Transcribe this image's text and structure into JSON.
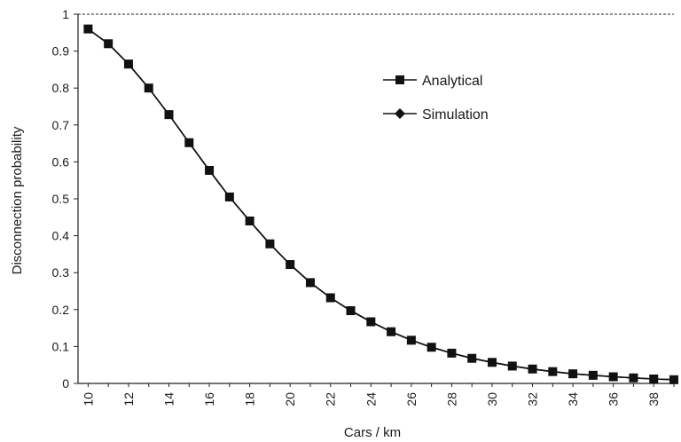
{
  "chart_data": {
    "type": "line",
    "xlabel": "Cars / km",
    "ylabel": "Disconnection probability",
    "xlim": [
      10,
      39
    ],
    "ylim": [
      0,
      1
    ],
    "x_ticks": [
      "10",
      "12",
      "14",
      "16",
      "18",
      "20",
      "22",
      "24",
      "26",
      "28",
      "30",
      "32",
      "34",
      "36",
      "38"
    ],
    "y_ticks": [
      "0",
      "0.1",
      "0.2",
      "0.3",
      "0.4",
      "0.5",
      "0.6",
      "0.7",
      "0.8",
      "0.9",
      "1"
    ],
    "x": [
      10,
      11,
      12,
      13,
      14,
      15,
      16,
      17,
      18,
      19,
      20,
      21,
      22,
      23,
      24,
      25,
      26,
      27,
      28,
      29,
      30,
      31,
      32,
      33,
      34,
      35,
      36,
      37,
      38,
      39
    ],
    "series": [
      {
        "name": "Analytical",
        "marker": "square",
        "values": [
          0.96,
          0.92,
          0.865,
          0.8,
          0.728,
          0.652,
          0.577,
          0.505,
          0.44,
          0.378,
          0.322,
          0.273,
          0.232,
          0.197,
          0.167,
          0.14,
          0.117,
          0.098,
          0.082,
          0.068,
          0.057,
          0.047,
          0.039,
          0.032,
          0.026,
          0.022,
          0.018,
          0.015,
          0.012,
          0.01
        ]
      },
      {
        "name": "Simulation",
        "marker": "diamond",
        "values": [
          0.96,
          0.92,
          0.865,
          0.8,
          0.728,
          0.652,
          0.577,
          0.505,
          0.44,
          0.378,
          0.322,
          0.273,
          0.232,
          0.197,
          0.167,
          0.14,
          0.117,
          0.098,
          0.082,
          0.068,
          0.057,
          0.047,
          0.039,
          0.032,
          0.026,
          0.022,
          0.018,
          0.015,
          0.012,
          0.01
        ]
      }
    ],
    "legend_position": "top-right",
    "grid": false,
    "colors": {
      "line": "#111111",
      "marker": "#111111",
      "axis": "#222222"
    }
  }
}
